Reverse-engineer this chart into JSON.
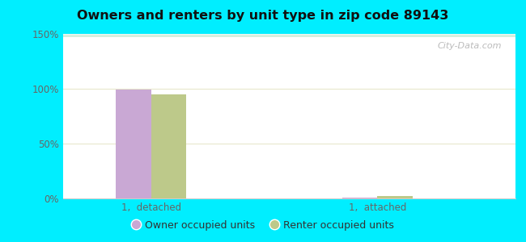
{
  "title": "Owners and renters by unit type in zip code 89143",
  "categories": [
    "1,  detached",
    "1,  attached"
  ],
  "owner_values": [
    99,
    1
  ],
  "renter_values": [
    95,
    2
  ],
  "owner_color": "#c9a8d4",
  "renter_color": "#bdc98a",
  "ylim": [
    0,
    150
  ],
  "yticks": [
    0,
    50,
    100,
    150
  ],
  "ytick_labels": [
    "0%",
    "50%",
    "100%",
    "150%"
  ],
  "legend_owner": "Owner occupied units",
  "legend_renter": "Renter occupied units",
  "bar_width": 0.28,
  "outer_bg": "#00eeff",
  "watermark": "City-Data.com",
  "tick_color": "#666666",
  "grid_color": "#ddeedc"
}
